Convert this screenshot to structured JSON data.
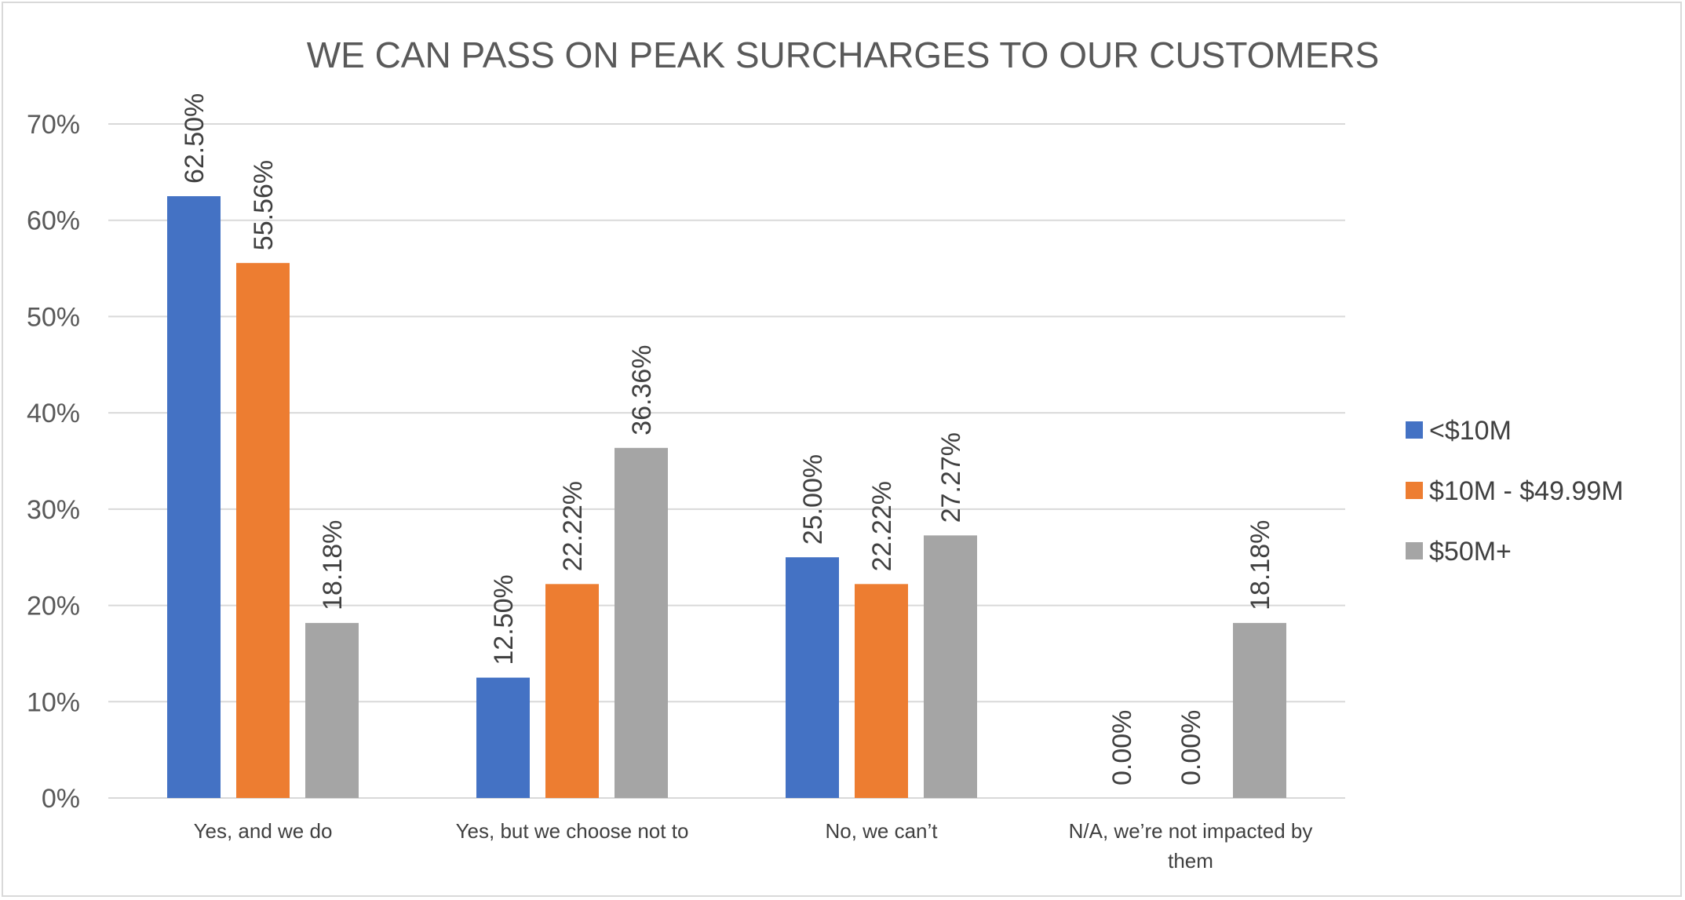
{
  "chart_data": {
    "type": "bar",
    "title": "WE CAN PASS ON PEAK SURCHARGES TO OUR CUSTOMERS",
    "xlabel": "",
    "ylabel": "",
    "ylim": [
      0,
      0.7
    ],
    "yticks": [
      "0%",
      "10%",
      "20%",
      "30%",
      "40%",
      "50%",
      "60%",
      "70%"
    ],
    "grid": true,
    "legend_position": "right",
    "categories": [
      [
        "Yes, and we do"
      ],
      [
        "Yes, but we choose not to"
      ],
      [
        "No, we can’t"
      ],
      [
        "N/A, we’re not impacted by",
        "them"
      ]
    ],
    "series": [
      {
        "name": "<$10M",
        "color": "#4472c4",
        "values": [
          0.625,
          0.125,
          0.25,
          0.0
        ],
        "labels": [
          "62.50%",
          "12.50%",
          "25.00%",
          "0.00%"
        ]
      },
      {
        "name": "$10M - $49.99M",
        "color": "#ed7d31",
        "values": [
          0.5556,
          0.2222,
          0.2222,
          0.0
        ],
        "labels": [
          "55.56%",
          "22.22%",
          "22.22%",
          "0.00%"
        ]
      },
      {
        "name": "$50M+",
        "color": "#a5a5a5",
        "values": [
          0.1818,
          0.3636,
          0.2727,
          0.1818
        ],
        "labels": [
          "18.18%",
          "36.36%",
          "27.27%",
          "18.18%"
        ]
      }
    ]
  }
}
